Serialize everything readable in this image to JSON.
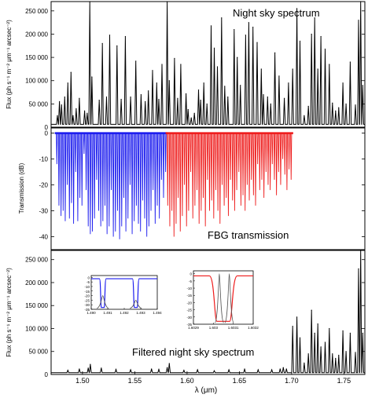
{
  "colors": {
    "black": "#000000",
    "blue": "#1a1aee",
    "red": "#ee1a1a",
    "gray": "#555555"
  },
  "chart_data": [
    {
      "type": "line",
      "title": "Night sky spectrum",
      "ylabel": "Flux (ph s⁻¹ m⁻² μm⁻¹ arcsec⁻²)",
      "xlim": [
        1.47,
        1.77
      ],
      "ylim": [
        0,
        270000
      ],
      "yticks": [
        0,
        50000,
        100000,
        150000,
        200000,
        250000
      ],
      "yticklabels": [
        "0",
        "50 000",
        "100 000",
        "150 000",
        "200 000",
        "250 000"
      ],
      "baseline": 6000,
      "series": [
        {
          "x": [
            1.476,
            1.478,
            1.48,
            1.483,
            1.486,
            1.489,
            1.491,
            1.494,
            1.497,
            1.502,
            1.5045,
            1.507,
            1.509,
            1.516,
            1.519,
            1.523,
            1.526,
            1.533,
            1.537,
            1.541,
            1.546,
            1.551,
            1.556,
            1.56,
            1.563,
            1.567,
            1.571,
            1.573,
            1.576,
            1.581,
            1.583,
            1.588,
            1.591,
            1.594,
            1.599,
            1.601,
            1.604,
            1.607,
            1.611,
            1.613,
            1.616,
            1.619,
            1.623,
            1.626,
            1.629,
            1.633,
            1.636,
            1.639,
            1.645,
            1.648,
            1.651,
            1.656,
            1.659,
            1.663,
            1.667,
            1.671,
            1.673,
            1.677,
            1.68,
            1.684,
            1.688,
            1.693,
            1.697,
            1.701,
            1.705,
            1.708,
            1.712,
            1.716,
            1.719,
            1.722,
            1.725,
            1.728,
            1.732,
            1.736,
            1.739,
            1.742,
            1.745,
            1.749,
            1.752,
            1.756,
            1.761,
            1.764,
            1.766,
            1.768
          ],
          "y": [
            25000,
            55000,
            48000,
            65000,
            95000,
            118000,
            25000,
            40000,
            62000,
            35000,
            30000,
            270000,
            108000,
            58000,
            180000,
            65000,
            198000,
            175000,
            60000,
            195000,
            65000,
            142000,
            70000,
            55000,
            78000,
            122000,
            95000,
            60000,
            135000,
            270000,
            100000,
            148000,
            62000,
            135000,
            72000,
            38000,
            20000,
            30000,
            80000,
            58000,
            95000,
            50000,
            218000,
            170000,
            130000,
            235000,
            88000,
            65000,
            210000,
            150000,
            90000,
            198000,
            225000,
            215000,
            182000,
            125000,
            70000,
            65000,
            50000,
            160000,
            110000,
            62000,
            95000,
            125000,
            255000,
            185000,
            25000,
            45000,
            200000,
            235000,
            125000,
            195000,
            168000,
            135000,
            52000,
            35000,
            42000,
            95000,
            50000,
            140000,
            48000,
            230000,
            270000,
            90000
          ]
        }
      ],
      "annotations": [
        {
          "text": "Night sky spectrum"
        }
      ]
    },
    {
      "type": "line",
      "title": "FBG transmission",
      "ylabel": "Transmission (dB)",
      "xlim": [
        1.47,
        1.77
      ],
      "ylim": [
        -45,
        2
      ],
      "yticks": [
        0,
        -10,
        -20,
        -30,
        -40
      ],
      "yticklabels": [
        "0",
        "-10",
        "-20",
        "-30",
        "-40"
      ],
      "series": [
        {
          "name": "",
          "color": "blue",
          "x": [
            1.4755,
            1.4775,
            1.4795,
            1.4815,
            1.4835,
            1.4855,
            1.4875,
            1.4895,
            1.4915,
            1.4935,
            1.4955,
            1.4975,
            1.4995,
            1.5015,
            1.5035,
            1.5055,
            1.5075,
            1.5095,
            1.5115,
            1.5135,
            1.5155,
            1.5175,
            1.5195,
            1.5215,
            1.5235,
            1.5255,
            1.5275,
            1.5295,
            1.5315,
            1.5335,
            1.5355,
            1.5375,
            1.5395,
            1.5415,
            1.5435,
            1.5455,
            1.5475,
            1.5495,
            1.5515,
            1.5535,
            1.5555,
            1.5575,
            1.5595,
            1.5615,
            1.5635,
            1.5655,
            1.5675,
            1.5695,
            1.5715,
            1.5735,
            1.5755,
            1.5775,
            1.5795
          ],
          "y": [
            -12,
            -28,
            -32,
            -30,
            -34,
            -20,
            -33,
            -27,
            -35,
            -15,
            -34,
            -25,
            -28,
            -8,
            -22,
            -36,
            -39,
            -38,
            -33,
            -18,
            -30,
            -36,
            -34,
            -28,
            -39,
            -36,
            -22,
            -40,
            -38,
            -30,
            -41,
            -36,
            -25,
            -38,
            -33,
            -20,
            -39,
            -34,
            -28,
            -35,
            -38,
            -26,
            -33,
            -40,
            -36,
            -30,
            -22,
            -35,
            -28,
            -33,
            -18,
            -25,
            -15
          ]
        },
        {
          "name": "",
          "color": "red",
          "x": [
            1.5815,
            1.5835,
            1.5855,
            1.5875,
            1.5895,
            1.5915,
            1.5935,
            1.5955,
            1.5975,
            1.5995,
            1.6015,
            1.6035,
            1.6055,
            1.6075,
            1.6095,
            1.6115,
            1.6135,
            1.6155,
            1.6175,
            1.6195,
            1.6215,
            1.6235,
            1.6255,
            1.6275,
            1.6295,
            1.6315,
            1.6335,
            1.6355,
            1.6375,
            1.6395,
            1.6415,
            1.6435,
            1.6455,
            1.6475,
            1.6495,
            1.6515,
            1.6535,
            1.6555,
            1.6575,
            1.6595,
            1.6615,
            1.6635,
            1.6655,
            1.6675,
            1.6695,
            1.6715,
            1.6735,
            1.6755,
            1.6775,
            1.6795,
            1.6815,
            1.6835,
            1.6855,
            1.6875,
            1.6895,
            1.6915,
            1.6935,
            1.6955,
            1.6975,
            1.6995
          ],
          "y": [
            -28,
            -36,
            -30,
            -40,
            -35,
            -25,
            -38,
            -32,
            -20,
            -36,
            -30,
            -15,
            -33,
            -28,
            -22,
            -35,
            -30,
            -25,
            -36,
            -18,
            -30,
            -26,
            -33,
            -22,
            -30,
            -35,
            -20,
            -28,
            -25,
            -32,
            -18,
            -26,
            -30,
            -22,
            -15,
            -28,
            -24,
            -30,
            -20,
            -26,
            -18,
            -24,
            -28,
            -12,
            -22,
            -18,
            -25,
            -15,
            -20,
            -22,
            -12,
            -18,
            -24,
            -15,
            -20,
            -10,
            -16,
            -22,
            -14,
            -18
          ]
        }
      ],
      "annotations": [
        {
          "text": "FBG transmission"
        }
      ]
    },
    {
      "type": "line",
      "title": "Filtered night sky spectrum",
      "ylabel": "Flux (ph s⁻¹ m⁻² μm⁻¹ arcsec⁻²)",
      "xlabel": "λ (μm)",
      "xlim": [
        1.47,
        1.77
      ],
      "xticks": [
        1.5,
        1.55,
        1.6,
        1.65,
        1.7,
        1.75
      ],
      "xticklabels": [
        "1.50",
        "1.55",
        "1.60",
        "1.65",
        "1.70",
        "1.75"
      ],
      "ylim": [
        0,
        270000
      ],
      "yticks": [
        0,
        50000,
        100000,
        150000,
        200000,
        250000
      ],
      "yticklabels": [
        "0",
        "50 000",
        "100 000",
        "150 000",
        "200 000",
        "250 000"
      ],
      "baseline": 4000,
      "series": [
        {
          "x": [
            1.486,
            1.497,
            1.5055,
            1.5075,
            1.518,
            1.532,
            1.546,
            1.566,
            1.573,
            1.581,
            1.583,
            1.597,
            1.61,
            1.626,
            1.64,
            1.655,
            1.668,
            1.681,
            1.689,
            1.692,
            1.695,
            1.701,
            1.705,
            1.708,
            1.712,
            1.716,
            1.719,
            1.722,
            1.725,
            1.728,
            1.732,
            1.736,
            1.739,
            1.742,
            1.745,
            1.749,
            1.752,
            1.756,
            1.761,
            1.764,
            1.766,
            1.768
          ],
          "y": [
            9000,
            12000,
            14000,
            22000,
            14000,
            11000,
            10000,
            12000,
            11000,
            15000,
            24000,
            9000,
            10000,
            8000,
            10000,
            12000,
            10000,
            10000,
            12000,
            15000,
            12000,
            105000,
            125000,
            80000,
            25000,
            45000,
            140000,
            90000,
            110000,
            60000,
            70000,
            100000,
            45000,
            35000,
            42000,
            95000,
            50000,
            90000,
            48000,
            230000,
            270000,
            90000
          ]
        }
      ],
      "annotations": [
        {
          "text": "Filtered night sky spectrum"
        }
      ]
    }
  ],
  "insets": [
    {
      "xlim": [
        1.49,
        1.494
      ],
      "xticks": [
        1.49,
        1.491,
        1.492,
        1.493,
        1.494
      ],
      "xticklabels": [
        "1.490",
        "1.491",
        "1.492",
        "1.493",
        "1.494"
      ],
      "ylim": [
        -35,
        2
      ],
      "yticks": [
        0,
        -5,
        -10,
        -15,
        -20,
        -25,
        -30,
        -35
      ],
      "yticklabels": [
        "0",
        "-5",
        "-10",
        "-15",
        "-20",
        "-25",
        "-30",
        "-35"
      ],
      "filter_color": "blue",
      "notches": [
        {
          "center": 1.4907,
          "width": 0.0004
        },
        {
          "center": 1.4927,
          "width": 0.0004
        }
      ],
      "lines": [
        {
          "center": 1.4907,
          "peak": -20
        },
        {
          "center": 1.4927,
          "peak": -25
        }
      ]
    },
    {
      "xlim": [
        1.6029,
        1.6032
      ],
      "xticks": [
        1.6029,
        1.603,
        1.6031,
        1.6032
      ],
      "xticklabels": [
        "1.6029",
        "1.603",
        "1.6031",
        "1.6032"
      ],
      "ylim": [
        -35,
        2
      ],
      "yticks": [
        0,
        -5,
        -10,
        -15,
        -20,
        -25,
        -30,
        -35
      ],
      "yticklabels": [
        "0",
        "-5",
        "-10",
        "-15",
        "-20",
        "-25",
        "-30",
        "-35"
      ],
      "filter_color": "red",
      "notches": [
        {
          "center": 1.60305,
          "width": 0.00014
        }
      ],
      "lines": [
        {
          "center": 1.60303,
          "peak": 0
        },
        {
          "center": 1.60308,
          "peak": 0
        }
      ]
    }
  ]
}
